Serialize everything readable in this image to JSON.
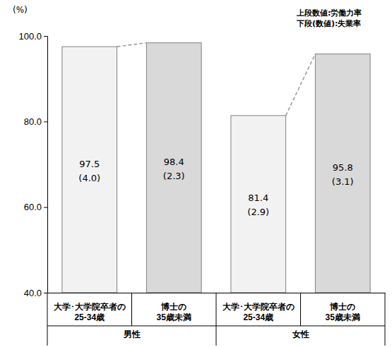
{
  "chart_data": {
    "type": "bar",
    "ylabel": "(%)",
    "notes": [
      "上段数値:労働力率",
      "下段(数値):失業率"
    ],
    "categories": [
      "大学･大学院卒者の\n25-34歳",
      "博士の\n35歳未満",
      "大学･大学院卒者の\n25-34歳",
      "博士の\n35歳未満"
    ],
    "x_groups": [
      "男性",
      "男性",
      "女性",
      "女性"
    ],
    "values": [
      97.5,
      98.4,
      81.4,
      95.8
    ],
    "unemployment": [
      4.0,
      2.3,
      2.9,
      3.1
    ],
    "unemployment_labels": [
      "(4.0)",
      "(2.3)",
      "(2.9)",
      "(3.1)"
    ],
    "colors": [
      "#f2f2f2",
      "#d9d9d9",
      "#f2f2f2",
      "#d9d9d9"
    ],
    "ylim": [
      40,
      100
    ],
    "yticks": [
      {
        "value": 40,
        "label": "40.0"
      },
      {
        "value": 60,
        "label": "60.0"
      },
      {
        "value": 80,
        "label": "80.0"
      },
      {
        "value": 100,
        "label": "100.0"
      }
    ],
    "grid": false,
    "data_labels": true
  }
}
